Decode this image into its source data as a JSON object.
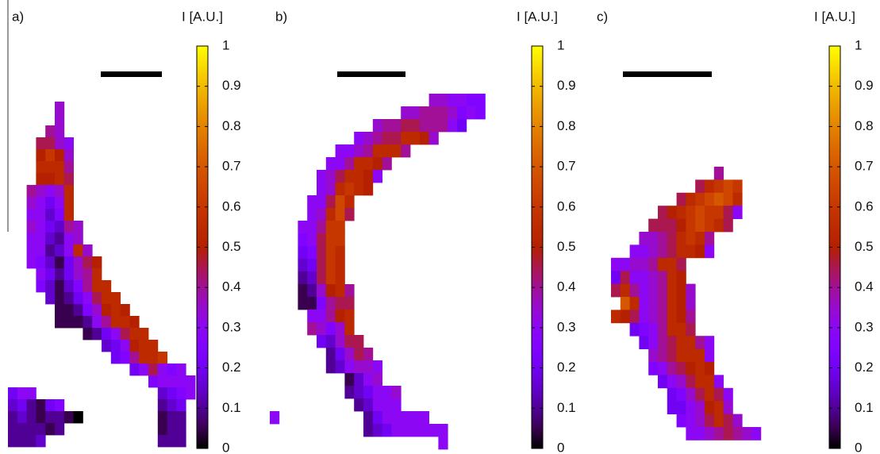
{
  "chart_data": [
    {
      "type": "heatmap",
      "label": "a)",
      "colorbar_label": "I [A.U.]",
      "colormap": "gnuplot",
      "zlim": [
        0,
        1
      ],
      "zticks": [
        0,
        0.1,
        0.2,
        0.3,
        0.4,
        0.5,
        0.6,
        0.7,
        0.8,
        0.9,
        1
      ],
      "rows": [
        {
          "row": 0,
          "col": 5,
          "values": [
            0.35
          ]
        },
        {
          "row": 1,
          "col": 5,
          "values": [
            0.35
          ]
        },
        {
          "row": 2,
          "col": 4,
          "values": [
            0.4,
            0.35
          ]
        },
        {
          "row": 3,
          "col": 3,
          "values": [
            0.45,
            0.45,
            0.35,
            0.3
          ]
        },
        {
          "row": 4,
          "col": 3,
          "values": [
            0.5,
            0.6,
            0.5,
            0.35
          ]
        },
        {
          "row": 5,
          "col": 3,
          "values": [
            0.55,
            0.55,
            0.55,
            0.4
          ]
        },
        {
          "row": 6,
          "col": 3,
          "values": [
            0.5,
            0.5,
            0.55,
            0.45
          ]
        },
        {
          "row": 7,
          "col": 2,
          "values": [
            0.4,
            0.35,
            0.3,
            0.35,
            0.55
          ]
        },
        {
          "row": 8,
          "col": 2,
          "values": [
            0.35,
            0.3,
            0.2,
            0.3,
            0.55
          ]
        },
        {
          "row": 9,
          "col": 2,
          "values": [
            0.3,
            0.3,
            0.15,
            0.25,
            0.55
          ]
        },
        {
          "row": 10,
          "col": 2,
          "values": [
            0.35,
            0.3,
            0.2,
            0.15,
            0.4,
            0.35
          ]
        },
        {
          "row": 11,
          "col": 2,
          "values": [
            0.3,
            0.3,
            0.15,
            0.1,
            0.3,
            0.35
          ]
        },
        {
          "row": 12,
          "col": 2,
          "values": [
            0.3,
            0.3,
            0.1,
            0.15,
            0.3,
            0.55,
            0.35
          ]
        },
        {
          "row": 13,
          "col": 2,
          "values": [
            0.3,
            0.25,
            0.15,
            0.05,
            0.2,
            0.35,
            0.45,
            0.5
          ]
        },
        {
          "row": 14,
          "col": 3,
          "values": [
            0.3,
            0.2,
            0.1,
            0.2,
            0.35,
            0.4,
            0.55
          ]
        },
        {
          "row": 15,
          "col": 3,
          "values": [
            0.25,
            0.15,
            0.05,
            0.15,
            0.25,
            0.4,
            0.55,
            0.55
          ]
        },
        {
          "row": 16,
          "col": 4,
          "values": [
            0.15,
            0.05,
            0.1,
            0.2,
            0.3,
            0.45,
            0.55,
            0.55
          ]
        },
        {
          "row": 17,
          "col": 5,
          "values": [
            0.05,
            0.05,
            0.1,
            0.25,
            0.35,
            0.5,
            0.55,
            0.5
          ]
        },
        {
          "row": 18,
          "col": 5,
          "values": [
            0.05,
            0.05,
            0.05,
            0.1,
            0.3,
            0.4,
            0.55,
            0.55,
            0.5
          ]
        },
        {
          "row": 19,
          "col": 8,
          "values": [
            0.05,
            0.1,
            0.2,
            0.3,
            0.45,
            0.55,
            0.55
          ]
        },
        {
          "row": 20,
          "col": 10,
          "values": [
            0.15,
            0.2,
            0.3,
            0.5,
            0.55,
            0.55
          ]
        },
        {
          "row": 21,
          "col": 11,
          "values": [
            0.2,
            0.25,
            0.4,
            0.55,
            0.55,
            0.6
          ]
        },
        {
          "row": 22,
          "col": 13,
          "values": [
            0.2,
            0.3,
            0.45,
            0.3,
            0.25,
            0.3
          ]
        },
        {
          "row": 23,
          "col": 15,
          "values": [
            0.25,
            0.3,
            0.3,
            0.3,
            0.3
          ]
        },
        {
          "row": 24,
          "col": 0,
          "values": [
            0.2,
            0.3,
            0.3
          ]
        },
        {
          "row": 24,
          "col": 16,
          "values": [
            0.15,
            0.2,
            0.25,
            0.3
          ]
        },
        {
          "row": 25,
          "col": 0,
          "values": [
            0.15,
            0.2,
            0.1,
            0.05,
            0.2,
            0.25
          ]
        },
        {
          "row": 25,
          "col": 16,
          "values": [
            0.1,
            0.15,
            0.2
          ]
        },
        {
          "row": 26,
          "col": 0,
          "values": [
            0.1,
            0.15,
            0.1,
            0.05,
            0.1,
            0.1,
            0.05,
            0
          ]
        },
        {
          "row": 26,
          "col": 16,
          "values": [
            0.05,
            0.1,
            0.1
          ]
        },
        {
          "row": 27,
          "col": 0,
          "values": [
            0.1,
            0.1,
            0.1,
            0.1,
            0.05,
            0.1
          ]
        },
        {
          "row": 27,
          "col": 16,
          "values": [
            0.05,
            0.1,
            0.1
          ]
        },
        {
          "row": 28,
          "col": 0,
          "values": [
            0.1,
            0.1,
            0.1,
            0.15
          ]
        },
        {
          "row": 28,
          "col": 16,
          "values": [
            0.1,
            0.1,
            0.1
          ]
        }
      ]
    },
    {
      "type": "heatmap",
      "label": "b)",
      "colorbar_label": "I [A.U.]",
      "colormap": "gnuplot",
      "zlim": [
        0,
        1
      ],
      "zticks": [
        0,
        0.1,
        0.2,
        0.3,
        0.4,
        0.5,
        0.6,
        0.7,
        0.8,
        0.9,
        1
      ],
      "rows": [
        {
          "row": 0,
          "col": 17,
          "values": [
            0.35,
            0.35,
            0.3,
            0.3,
            0.25,
            0.25
          ]
        },
        {
          "row": 1,
          "col": 14,
          "values": [
            0.35,
            0.35,
            0.4,
            0.4,
            0.4,
            0.35,
            0.25,
            0.3,
            0.25
          ]
        },
        {
          "row": 2,
          "col": 11,
          "values": [
            0.35,
            0.4,
            0.4,
            0.45,
            0.45,
            0.4,
            0.4,
            0.4,
            0.3,
            0.2
          ]
        },
        {
          "row": 3,
          "col": 9,
          "values": [
            0.3,
            0.35,
            0.4,
            0.45,
            0.45,
            0.55,
            0.55,
            0.5,
            0.35
          ]
        },
        {
          "row": 4,
          "col": 7,
          "values": [
            0.3,
            0.3,
            0.35,
            0.4,
            0.55,
            0.55,
            0.55,
            0.4
          ]
        },
        {
          "row": 5,
          "col": 6,
          "values": [
            0.3,
            0.3,
            0.4,
            0.55,
            0.55,
            0.5,
            0.4
          ]
        },
        {
          "row": 6,
          "col": 5,
          "values": [
            0.3,
            0.35,
            0.45,
            0.55,
            0.55,
            0.5,
            0.3
          ]
        },
        {
          "row": 7,
          "col": 5,
          "values": [
            0.3,
            0.35,
            0.55,
            0.6,
            0.55,
            0.5
          ]
        },
        {
          "row": 8,
          "col": 4,
          "values": [
            0.3,
            0.3,
            0.45,
            0.65,
            0.55
          ]
        },
        {
          "row": 9,
          "col": 4,
          "values": [
            0.3,
            0.35,
            0.55,
            0.65,
            0.45
          ]
        },
        {
          "row": 10,
          "col": 3,
          "values": [
            0.3,
            0.3,
            0.4,
            0.6,
            0.6
          ]
        },
        {
          "row": 11,
          "col": 3,
          "values": [
            0.25,
            0.3,
            0.45,
            0.6,
            0.6
          ]
        },
        {
          "row": 12,
          "col": 3,
          "values": [
            0.2,
            0.25,
            0.45,
            0.6,
            0.55
          ]
        },
        {
          "row": 13,
          "col": 3,
          "values": [
            0.15,
            0.2,
            0.45,
            0.6,
            0.55
          ]
        },
        {
          "row": 14,
          "col": 3,
          "values": [
            0.1,
            0.15,
            0.45,
            0.6,
            0.55
          ]
        },
        {
          "row": 15,
          "col": 3,
          "values": [
            0.05,
            0.1,
            0.35,
            0.5,
            0.55,
            0.4
          ]
        },
        {
          "row": 16,
          "col": 3,
          "values": [
            0.05,
            0.05,
            0.25,
            0.4,
            0.45,
            0.45
          ]
        },
        {
          "row": 17,
          "col": 4,
          "values": [
            0.3,
            0.3,
            0.4,
            0.5,
            0.55
          ]
        },
        {
          "row": 18,
          "col": 4,
          "values": [
            0.4,
            0.35,
            0.25,
            0.35,
            0.55
          ]
        },
        {
          "row": 19,
          "col": 5,
          "values": [
            0.2,
            0.15,
            0.35,
            0.45,
            0.45
          ]
        },
        {
          "row": 20,
          "col": 6,
          "values": [
            0.1,
            0.2,
            0.35,
            0.45,
            0.4
          ]
        },
        {
          "row": 21,
          "col": 6,
          "values": [
            0.1,
            0.15,
            0.3,
            0.35,
            0.35,
            0.3
          ]
        },
        {
          "row": 22,
          "col": 8,
          "values": [
            0.05,
            0.15,
            0.3,
            0.35
          ]
        },
        {
          "row": 23,
          "col": 8,
          "values": [
            0.1,
            0.15,
            0.2,
            0.3,
            0.3,
            0.35
          ]
        },
        {
          "row": 24,
          "col": 9,
          "values": [
            0.1,
            0.15,
            0.3,
            0.3,
            0.3
          ]
        },
        {
          "row": 25,
          "col": 0,
          "values": [
            0.3
          ]
        },
        {
          "row": 25,
          "col": 10,
          "values": [
            0.1,
            0.2,
            0.3,
            0.3,
            0.3,
            0.3,
            0.3
          ]
        },
        {
          "row": 26,
          "col": 10,
          "values": [
            0.1,
            0.15,
            0.2,
            0.3,
            0.3,
            0.3,
            0.3,
            0.3,
            0.3
          ]
        },
        {
          "row": 27,
          "col": 18,
          "values": [
            0.3
          ]
        }
      ]
    },
    {
      "type": "heatmap",
      "label": "c)",
      "colorbar_label": "I [A.U.]",
      "colormap": "gnuplot",
      "zlim": [
        0,
        1
      ],
      "zticks": [
        0,
        0.1,
        0.2,
        0.3,
        0.4,
        0.5,
        0.6,
        0.7,
        0.8,
        0.9,
        1
      ],
      "rows": [
        {
          "row": 0,
          "col": 11,
          "values": [
            0.4
          ]
        },
        {
          "row": 1,
          "col": 9,
          "values": [
            0.45,
            0.55,
            0.6,
            0.65,
            0.6
          ]
        },
        {
          "row": 2,
          "col": 7,
          "values": [
            0.45,
            0.55,
            0.6,
            0.65,
            0.7,
            0.65,
            0.55
          ]
        },
        {
          "row": 3,
          "col": 5,
          "values": [
            0.45,
            0.5,
            0.55,
            0.6,
            0.65,
            0.6,
            0.6,
            0.45,
            0.3
          ]
        },
        {
          "row": 4,
          "col": 4,
          "values": [
            0.45,
            0.45,
            0.45,
            0.5,
            0.6,
            0.65,
            0.6,
            0.55,
            0.45
          ]
        },
        {
          "row": 5,
          "col": 3,
          "values": [
            0.35,
            0.35,
            0.4,
            0.45,
            0.55,
            0.6,
            0.55,
            0.4
          ]
        },
        {
          "row": 6,
          "col": 2,
          "values": [
            0.3,
            0.3,
            0.35,
            0.4,
            0.45,
            0.55,
            0.55,
            0.5,
            0.3
          ]
        },
        {
          "row": 7,
          "col": 0,
          "values": [
            0.3,
            0.3,
            0.35,
            0.35,
            0.4,
            0.55,
            0.55,
            0.45
          ]
        },
        {
          "row": 8,
          "col": 0,
          "values": [
            0.2,
            0.45,
            0.3,
            0.3,
            0.35,
            0.4,
            0.55,
            0.5
          ]
        },
        {
          "row": 9,
          "col": 0,
          "values": [
            0.45,
            0.55,
            0.4,
            0.3,
            0.35,
            0.4,
            0.55,
            0.5,
            0.35
          ]
        },
        {
          "row": 10,
          "col": 1,
          "values": [
            0.7,
            0.55,
            0.3,
            0.35,
            0.4,
            0.55,
            0.5,
            0.35
          ]
        },
        {
          "row": 11,
          "col": 0,
          "values": [
            0.55,
            0.5,
            0.45,
            0.3,
            0.35,
            0.4,
            0.55,
            0.5,
            0.4
          ]
        },
        {
          "row": 12,
          "col": 2,
          "values": [
            0.2,
            0.25,
            0.3,
            0.4,
            0.55,
            0.55,
            0.45
          ]
        },
        {
          "row": 13,
          "col": 3,
          "values": [
            0.2,
            0.3,
            0.4,
            0.45,
            0.55,
            0.55,
            0.4,
            0.3
          ]
        },
        {
          "row": 14,
          "col": 4,
          "values": [
            0.35,
            0.4,
            0.45,
            0.55,
            0.55,
            0.55,
            0.3
          ]
        },
        {
          "row": 15,
          "col": 4,
          "values": [
            0.25,
            0.3,
            0.4,
            0.45,
            0.5,
            0.55,
            0.5
          ]
        },
        {
          "row": 16,
          "col": 5,
          "values": [
            0.2,
            0.3,
            0.35,
            0.45,
            0.55,
            0.55,
            0.3
          ]
        },
        {
          "row": 17,
          "col": 6,
          "values": [
            0.2,
            0.25,
            0.35,
            0.45,
            0.55,
            0.45,
            0.3
          ]
        },
        {
          "row": 18,
          "col": 6,
          "values": [
            0.2,
            0.2,
            0.3,
            0.35,
            0.5,
            0.55,
            0.35
          ]
        },
        {
          "row": 19,
          "col": 7,
          "values": [
            0.25,
            0.3,
            0.35,
            0.45,
            0.55,
            0.45,
            0.35
          ]
        },
        {
          "row": 20,
          "col": 8,
          "values": [
            0.3,
            0.3,
            0.35,
            0.4,
            0.45,
            0.4,
            0.35,
            0.3
          ]
        }
      ]
    }
  ]
}
